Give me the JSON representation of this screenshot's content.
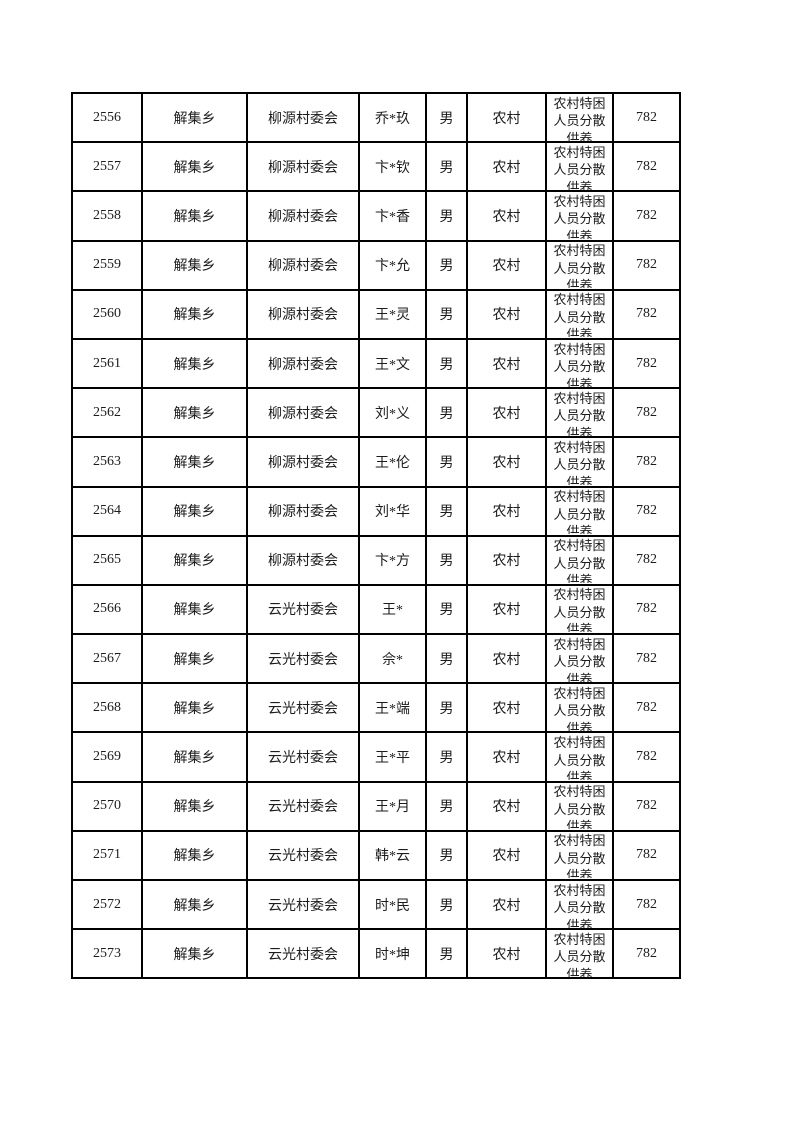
{
  "page": {
    "background": "#ffffff",
    "border_color": "#000000",
    "text_color": "#1c1c1c"
  },
  "table": {
    "columns": [
      "seq",
      "township",
      "village",
      "name",
      "gender",
      "residence",
      "support_type",
      "amount"
    ],
    "rows": [
      {
        "seq": "2556",
        "township": "解集乡",
        "village": "柳源村委会",
        "name": "乔*玖",
        "gender": "男",
        "residence": "农村",
        "support_type": "农村特困人员分散供养",
        "amount": "782"
      },
      {
        "seq": "2557",
        "township": "解集乡",
        "village": "柳源村委会",
        "name": "卞*钦",
        "gender": "男",
        "residence": "农村",
        "support_type": "农村特困人员分散供养",
        "amount": "782"
      },
      {
        "seq": "2558",
        "township": "解集乡",
        "village": "柳源村委会",
        "name": "卞*香",
        "gender": "男",
        "residence": "农村",
        "support_type": "农村特困人员分散供养",
        "amount": "782"
      },
      {
        "seq": "2559",
        "township": "解集乡",
        "village": "柳源村委会",
        "name": "卞*允",
        "gender": "男",
        "residence": "农村",
        "support_type": "农村特困人员分散供养",
        "amount": "782"
      },
      {
        "seq": "2560",
        "township": "解集乡",
        "village": "柳源村委会",
        "name": "王*灵",
        "gender": "男",
        "residence": "农村",
        "support_type": "农村特困人员分散供养",
        "amount": "782"
      },
      {
        "seq": "2561",
        "township": "解集乡",
        "village": "柳源村委会",
        "name": "王*文",
        "gender": "男",
        "residence": "农村",
        "support_type": "农村特困人员分散供养",
        "amount": "782"
      },
      {
        "seq": "2562",
        "township": "解集乡",
        "village": "柳源村委会",
        "name": "刘*义",
        "gender": "男",
        "residence": "农村",
        "support_type": "农村特困人员分散供养",
        "amount": "782"
      },
      {
        "seq": "2563",
        "township": "解集乡",
        "village": "柳源村委会",
        "name": "王*伦",
        "gender": "男",
        "residence": "农村",
        "support_type": "农村特困人员分散供养",
        "amount": "782"
      },
      {
        "seq": "2564",
        "township": "解集乡",
        "village": "柳源村委会",
        "name": "刘*华",
        "gender": "男",
        "residence": "农村",
        "support_type": "农村特困人员分散供养",
        "amount": "782"
      },
      {
        "seq": "2565",
        "township": "解集乡",
        "village": "柳源村委会",
        "name": "卞*方",
        "gender": "男",
        "residence": "农村",
        "support_type": "农村特困人员分散供养",
        "amount": "782"
      },
      {
        "seq": "2566",
        "township": "解集乡",
        "village": "云光村委会",
        "name": "王*",
        "gender": "男",
        "residence": "农村",
        "support_type": "农村特困人员分散供养",
        "amount": "782"
      },
      {
        "seq": "2567",
        "township": "解集乡",
        "village": "云光村委会",
        "name": "佘*",
        "gender": "男",
        "residence": "农村",
        "support_type": "农村特困人员分散供养",
        "amount": "782"
      },
      {
        "seq": "2568",
        "township": "解集乡",
        "village": "云光村委会",
        "name": "王*端",
        "gender": "男",
        "residence": "农村",
        "support_type": "农村特困人员分散供养",
        "amount": "782"
      },
      {
        "seq": "2569",
        "township": "解集乡",
        "village": "云光村委会",
        "name": "王*平",
        "gender": "男",
        "residence": "农村",
        "support_type": "农村特困人员分散供养",
        "amount": "782"
      },
      {
        "seq": "2570",
        "township": "解集乡",
        "village": "云光村委会",
        "name": "王*月",
        "gender": "男",
        "residence": "农村",
        "support_type": "农村特困人员分散供养",
        "amount": "782"
      },
      {
        "seq": "2571",
        "township": "解集乡",
        "village": "云光村委会",
        "name": "韩*云",
        "gender": "男",
        "residence": "农村",
        "support_type": "农村特困人员分散供养",
        "amount": "782"
      },
      {
        "seq": "2572",
        "township": "解集乡",
        "village": "云光村委会",
        "name": "时*民",
        "gender": "男",
        "residence": "农村",
        "support_type": "农村特困人员分散供养",
        "amount": "782"
      },
      {
        "seq": "2573",
        "township": "解集乡",
        "village": "云光村委会",
        "name": "时*坤",
        "gender": "男",
        "residence": "农村",
        "support_type": "农村特困人员分散供养",
        "amount": "782"
      }
    ]
  }
}
